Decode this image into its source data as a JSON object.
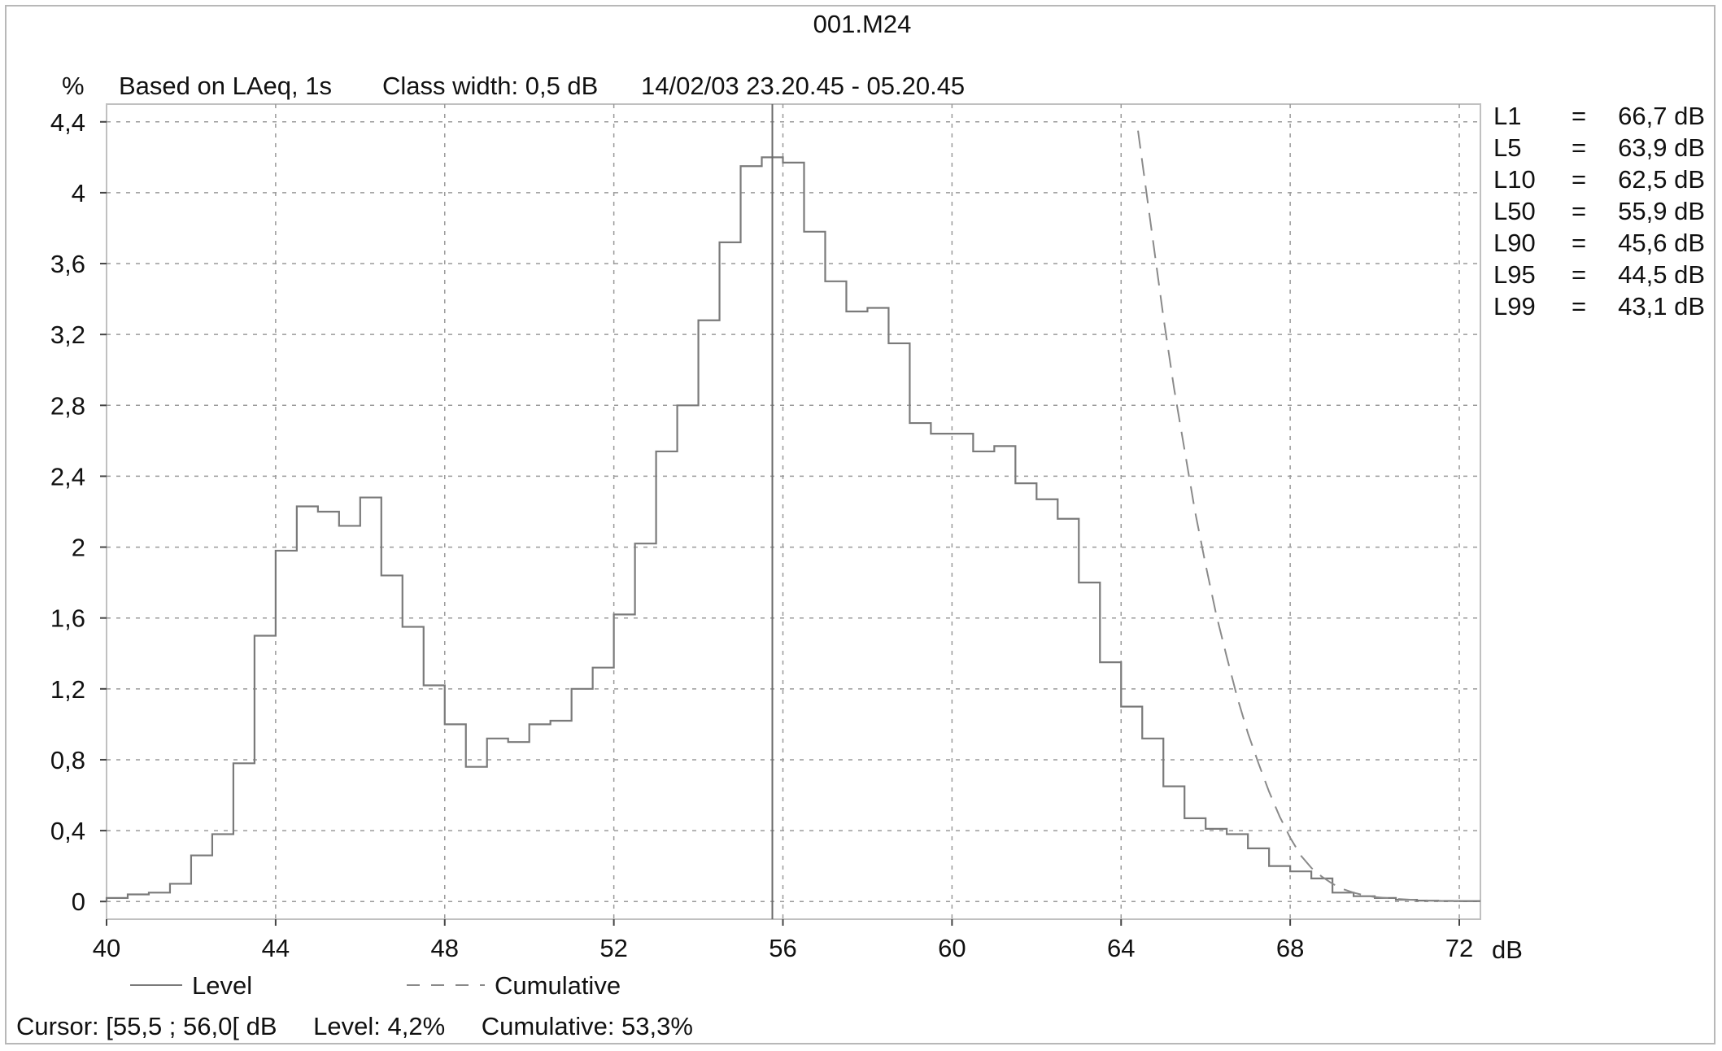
{
  "title": "001.M24",
  "header": {
    "y_unit": "%",
    "based_on": "Based on LAeq, 1s",
    "class_width": "Class width: 0,5 dB",
    "period": "14/02/03 23.20.45 - 05.20.45"
  },
  "statistics": [
    {
      "name": "L1",
      "eq": "=",
      "value": "66,7 dB"
    },
    {
      "name": "L5",
      "eq": "=",
      "value": "63,9 dB"
    },
    {
      "name": "L10",
      "eq": "=",
      "value": "62,5 dB"
    },
    {
      "name": "L50",
      "eq": "=",
      "value": "55,9 dB"
    },
    {
      "name": "L90",
      "eq": "=",
      "value": "45,6 dB"
    },
    {
      "name": "L95",
      "eq": "=",
      "value": "44,5 dB"
    },
    {
      "name": "L99",
      "eq": "=",
      "value": "43,1 dB"
    }
  ],
  "cursor": {
    "range": "Cursor: [55,5 ; 56,0[ dB",
    "level": "Level: 4,2%",
    "cumulative": "Cumulative: 53,3%"
  },
  "colors": {
    "level_line": "#7a7a7a",
    "cumulative_line": "#8a8a8a",
    "grid": "#9a9a9a",
    "cursor_line": "#6a6a6a",
    "plot_border": "#c0c0c0"
  },
  "chart_data": {
    "type": "line",
    "title": "001.M24",
    "xlabel": "dB",
    "ylabel": "%",
    "xlim": [
      40,
      72.5
    ],
    "ylim": [
      -0.1,
      4.5
    ],
    "grid": true,
    "legend_position": "bottom-left",
    "x_ticks": [
      40,
      44,
      48,
      52,
      56,
      60,
      64,
      68,
      72
    ],
    "x_tick_labels": [
      "40",
      "44",
      "48",
      "52",
      "56",
      "60",
      "64",
      "68",
      "72"
    ],
    "y_ticks": [
      0,
      0.4,
      0.8,
      1.2,
      1.6,
      2,
      2.4,
      2.8,
      3.2,
      3.6,
      4,
      4.4
    ],
    "y_tick_labels": [
      "0",
      "0,4",
      "0,8",
      "1,2",
      "1,6",
      "2",
      "2,4",
      "2,8",
      "3,2",
      "3,6",
      "4",
      "4,4"
    ],
    "cursor_x": 55.75,
    "series": [
      {
        "name": "Level",
        "style": "step-solid",
        "bin_edges_start": 40.0,
        "bin_width": 0.5,
        "values": [
          0.02,
          0.04,
          0.05,
          0.1,
          0.26,
          0.38,
          0.78,
          1.5,
          1.98,
          2.23,
          2.2,
          2.12,
          2.28,
          1.84,
          1.55,
          1.22,
          1.0,
          0.76,
          0.92,
          0.9,
          1.0,
          1.02,
          1.2,
          1.32,
          1.62,
          2.02,
          2.54,
          2.8,
          3.28,
          3.72,
          4.15,
          4.2,
          4.17,
          3.78,
          3.5,
          3.33,
          3.35,
          3.15,
          2.7,
          2.64,
          2.64,
          2.54,
          2.57,
          2.36,
          2.27,
          2.16,
          1.8,
          1.35,
          1.1,
          0.92,
          0.65,
          0.47,
          0.41,
          0.38,
          0.3,
          0.2,
          0.17,
          0.13,
          0.05,
          0.03,
          0.02,
          0.01,
          0.005,
          0.003,
          0.002
        ]
      },
      {
        "name": "Cumulative",
        "style": "dashed",
        "x": [
          64.4,
          64.6,
          64.8,
          65.0,
          65.25,
          65.5,
          65.75,
          66.0,
          66.25,
          66.5,
          66.75,
          67.0,
          67.25,
          67.5,
          67.75,
          68.0,
          68.25,
          68.5,
          68.75,
          69.0,
          69.25,
          69.5,
          69.75,
          70.0,
          70.5,
          71.0,
          71.5,
          72.0
        ],
        "values": [
          4.35,
          4.0,
          3.65,
          3.3,
          2.9,
          2.55,
          2.2,
          1.9,
          1.62,
          1.38,
          1.15,
          0.95,
          0.78,
          0.62,
          0.48,
          0.36,
          0.26,
          0.19,
          0.14,
          0.1,
          0.07,
          0.05,
          0.035,
          0.025,
          0.015,
          0.008,
          0.004,
          0.002
        ]
      }
    ]
  }
}
